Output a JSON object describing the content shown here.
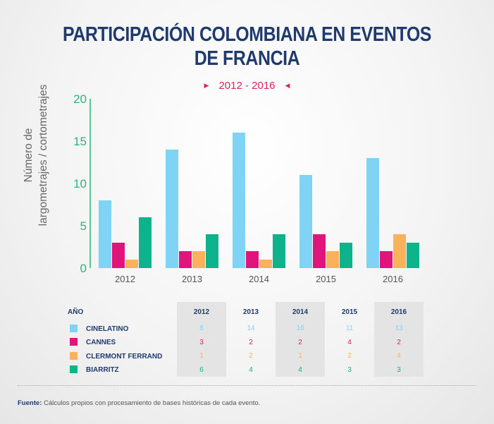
{
  "title_line1": "PARTICIPACIÓN COLOMBIANA EN EVENTOS",
  "title_line2": "DE FRANCIA",
  "subtitle": "2012 - 2016",
  "source_label": "Fuente:",
  "source_text": " Cálculos propios con procesamiento de bases históricas de cada evento.",
  "chart_data": {
    "type": "bar",
    "ylabel_line1": "Número de",
    "ylabel_line2": "largometrajes / cortometrajes",
    "ylim": [
      0,
      20
    ],
    "yticks": [
      "0",
      "5",
      "10",
      "15",
      "20"
    ],
    "categories": [
      "2012",
      "2013",
      "2014",
      "2015",
      "2016"
    ],
    "series": [
      {
        "name": "CINELATINO",
        "color": "#7fd3f5",
        "values": [
          8,
          14,
          16,
          11,
          13
        ]
      },
      {
        "name": "CANNES",
        "color": "#e0147a",
        "values": [
          3,
          2,
          2,
          4,
          2
        ]
      },
      {
        "name": "CLERMONT FERRAND",
        "color": "#f9b15b",
        "values": [
          1,
          2,
          1,
          2,
          4
        ]
      },
      {
        "name": "BIARRITZ",
        "color": "#0db38a",
        "values": [
          6,
          4,
          4,
          3,
          3
        ]
      }
    ],
    "axis_color": "#2bb37f",
    "legend": "table-below"
  },
  "table": {
    "header_label": "AÑO",
    "years": [
      "2012",
      "2013",
      "2014",
      "2015",
      "2016"
    ],
    "rows": [
      {
        "label": "CINELATINO",
        "values": [
          "8",
          "14",
          "16",
          "11",
          "13"
        ],
        "color": "#7fd3f5"
      },
      {
        "label": "CANNES",
        "values": [
          "3",
          "2",
          "2",
          "4",
          "2"
        ],
        "color": "#e0147a"
      },
      {
        "label": "CLERMONT FERRAND",
        "values": [
          "1",
          "2",
          "1",
          "2",
          "4"
        ],
        "color": "#f9b15b"
      },
      {
        "label": "BIARRITZ",
        "values": [
          "6",
          "4",
          "4",
          "3",
          "3"
        ],
        "color": "#0db38a"
      }
    ]
  }
}
